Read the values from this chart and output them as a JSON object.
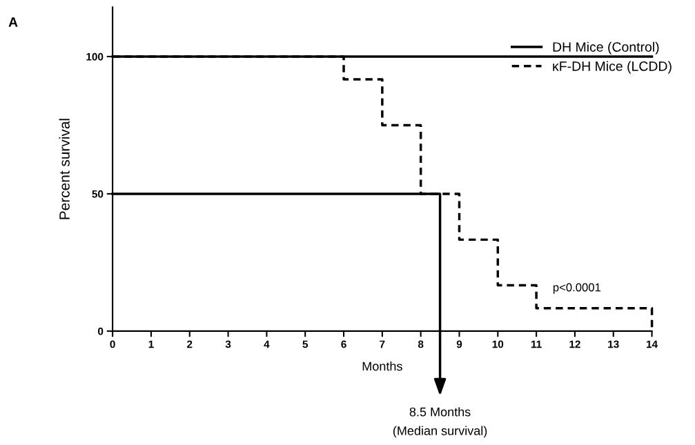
{
  "chart_data": {
    "type": "step",
    "xlabel": "Months",
    "ylabel": "Percent survival",
    "series": [
      {
        "name": "DH Mice (Control)",
        "color": "#000000",
        "line_style": "solid",
        "x": [
          0,
          14
        ],
        "values": [
          100,
          100
        ]
      },
      {
        "name": "κF-DH Mice (LCDD)",
        "color": "#000000",
        "line_style": "dashed",
        "x": [
          0,
          6,
          7,
          8,
          9,
          10,
          11,
          14,
          14
        ],
        "values": [
          100,
          91.7,
          75,
          50,
          33.3,
          16.7,
          8.3,
          8.3,
          0
        ]
      },
      {
        "type": "line",
        "color": "#000000",
        "line_style": "solid",
        "x": [
          0,
          8.5,
          8.5
        ],
        "values": [
          50,
          50,
          0
        ]
      }
    ],
    "xlim": [
      0,
      14
    ],
    "xticks": [
      0,
      1,
      2,
      3,
      4,
      5,
      6,
      7,
      8,
      9,
      10,
      11,
      12,
      13,
      14
    ],
    "ylim": [
      0,
      118
    ],
    "yticks": [
      0,
      50,
      100
    ],
    "grid": false,
    "legend": "top right",
    "marker": "none",
    "annotations": [
      "A",
      "p<0.0001",
      "8.5 Months\n(Median survival)"
    ]
  }
}
